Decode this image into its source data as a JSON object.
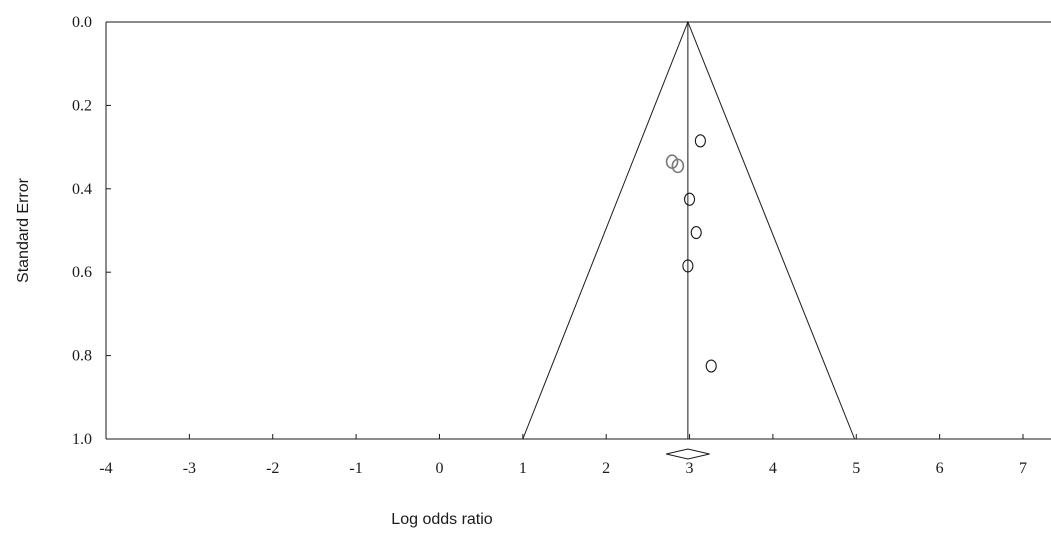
{
  "chart_data": {
    "type": "scatter",
    "title": "",
    "xlabel": "Log odds ratio",
    "ylabel": "Standard Error",
    "xlim": [
      -4,
      7.3
    ],
    "ylim": [
      0,
      1
    ],
    "y_inverted": true,
    "x_ticks": [
      -4,
      -3,
      -2,
      -1,
      0,
      1,
      2,
      3,
      4,
      5,
      6,
      7
    ],
    "x_tick_labels": [
      "-4",
      "-3",
      "-2",
      "-1",
      "0",
      "1",
      "2",
      "3",
      "4",
      "5",
      "6",
      "7"
    ],
    "y_ticks": [
      0,
      0.2,
      0.4,
      0.6,
      0.8,
      1.0
    ],
    "y_tick_labels": [
      "0.0",
      "0.2",
      "0.4",
      "0.6",
      "0.8",
      "1.0"
    ],
    "grid": false,
    "pooled_estimate": 2.98,
    "funnel": {
      "apex": [
        2.98,
        0.0
      ],
      "base_left": [
        1.0,
        1.0
      ],
      "base_right": [
        4.98,
        1.0
      ]
    },
    "observed_studies": [
      {
        "x": 3.13,
        "y": 0.285
      },
      {
        "x": 3.0,
        "y": 0.425
      },
      {
        "x": 3.08,
        "y": 0.505
      },
      {
        "x": 2.98,
        "y": 0.585
      },
      {
        "x": 3.26,
        "y": 0.825
      }
    ],
    "imputed_studies": [
      {
        "x": 2.79,
        "y": 0.335
      },
      {
        "x": 2.86,
        "y": 0.345
      }
    ],
    "summary_diamond": {
      "center": 2.98,
      "lower": 2.72,
      "upper": 3.24
    },
    "colors": {
      "observed": "#1a1a1a",
      "imputed": "#7a7a7a",
      "lines": "#1a1a1a"
    }
  }
}
